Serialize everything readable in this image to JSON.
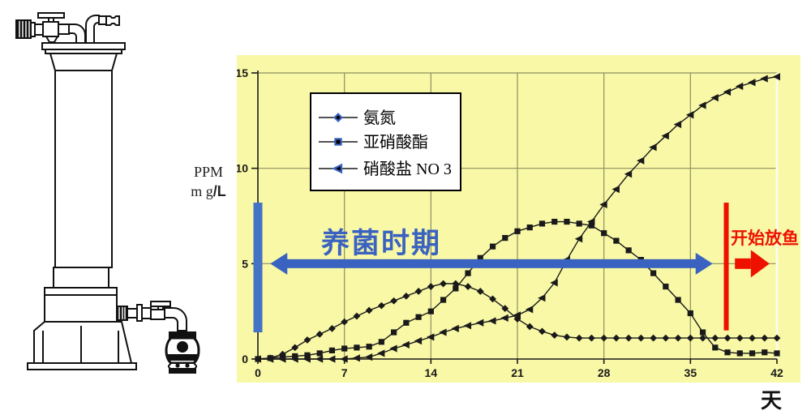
{
  "illustration": {
    "name": "filter-column-with-valves-and-pump"
  },
  "chart": {
    "y_axis_label": {
      "l1": "PPM",
      "l2a": "m g",
      "l2b": "/L"
    },
    "x_axis_label": "天",
    "colors": {
      "panel_background": "#f8f8a6",
      "gridline": "#8f8f62",
      "axis": "#1a1a1a",
      "series_line": "#1a1a1a",
      "legend_marker_edge": "#3a62c0",
      "blue_accent": "#4472c4",
      "red_accent": "#ee1100",
      "plot_right_edge": "#fbfbe9"
    }
  },
  "chart_data": {
    "type": "line",
    "x": [
      0,
      1,
      2,
      3,
      4,
      5,
      6,
      7,
      8,
      9,
      10,
      11,
      12,
      13,
      14,
      15,
      16,
      17,
      18,
      19,
      20,
      21,
      22,
      23,
      24,
      25,
      26,
      27,
      28,
      29,
      30,
      31,
      32,
      33,
      34,
      35,
      36,
      37,
      38,
      39,
      40,
      41,
      42
    ],
    "series": [
      {
        "name": "氨氮",
        "marker": "diamond",
        "values": [
          0,
          0.05,
          0.25,
          0.6,
          1.0,
          1.3,
          1.6,
          1.95,
          2.25,
          2.55,
          2.8,
          3.05,
          3.3,
          3.55,
          3.8,
          3.95,
          3.95,
          3.8,
          3.55,
          3.15,
          2.65,
          2.1,
          1.7,
          1.45,
          1.25,
          1.15,
          1.1,
          1.1,
          1.1,
          1.1,
          1.1,
          1.1,
          1.1,
          1.1,
          1.1,
          1.1,
          1.1,
          1.1,
          1.1,
          1.1,
          1.1,
          1.1,
          1.1
        ]
      },
      {
        "name": "亚硝酸酯",
        "marker": "square",
        "values": [
          0,
          0.05,
          0.1,
          0.15,
          0.2,
          0.3,
          0.45,
          0.55,
          0.6,
          0.65,
          0.9,
          1.4,
          1.9,
          2.2,
          2.5,
          3.1,
          3.7,
          4.5,
          5.3,
          5.9,
          6.35,
          6.7,
          6.9,
          7.1,
          7.2,
          7.2,
          7.1,
          7.0,
          6.6,
          6.2,
          5.7,
          5.2,
          4.5,
          3.8,
          3.1,
          2.4,
          1.4,
          0.6,
          0.35,
          0.3,
          0.3,
          0.35,
          0.3
        ]
      },
      {
        "name": "硝酸盐 NO 3",
        "marker": "triangle-left",
        "values": [
          0,
          0,
          0,
          0,
          0,
          0,
          0,
          0,
          0.05,
          0.1,
          0.3,
          0.55,
          0.75,
          0.95,
          1.15,
          1.4,
          1.6,
          1.75,
          1.9,
          2.0,
          2.15,
          2.3,
          2.6,
          3.2,
          4.0,
          5.2,
          6.3,
          7.2,
          8.1,
          8.9,
          9.7,
          10.4,
          11.1,
          11.7,
          12.3,
          12.8,
          13.3,
          13.7,
          14.0,
          14.3,
          14.5,
          14.7,
          14.8
        ]
      }
    ],
    "xticks": [
      0,
      7,
      14,
      21,
      28,
      35,
      42
    ],
    "yticks": [
      0,
      5,
      10,
      15
    ],
    "xlim": [
      0,
      42
    ],
    "ylim": [
      0,
      15
    ],
    "grid": true,
    "legend_position": "top-left-inside",
    "xlabel": "天",
    "ylabel": "PPM m g/L",
    "annotations": {
      "cultivation_period": {
        "label": "养菌时期",
        "color": "#3a62c0",
        "arrow_y": 5,
        "arrow_from_day": 1.0,
        "arrow_to_day": 36.8
      },
      "start_fish": {
        "label": "开始放鱼",
        "color": "#ee1100",
        "line_day": 37.9,
        "line_from_value": 1.5,
        "line_to_value": 8.2,
        "arrow_y": 5,
        "arrow_from_day": 38.6,
        "arrow_to_day": 41.4
      },
      "left_bar": {
        "day": 0,
        "from_value": 1.4,
        "to_value": 8.2,
        "color": "#4472c4"
      }
    }
  }
}
